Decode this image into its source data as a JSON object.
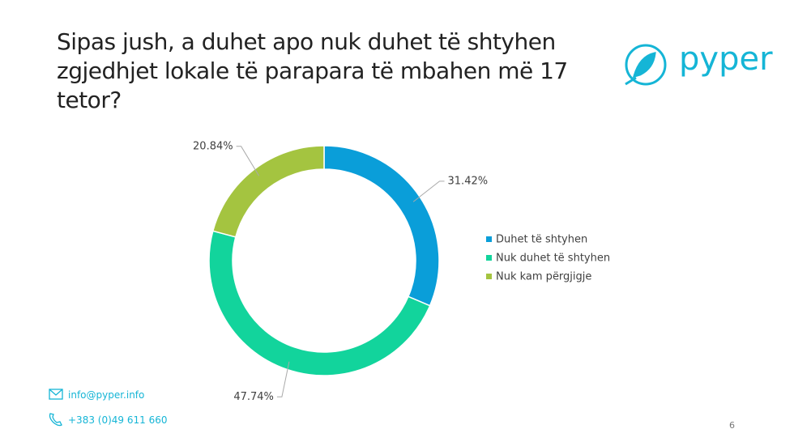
{
  "chart_data": {
    "type": "pie",
    "donut": true,
    "title": "Sipas jush, a duhet apo nuk duhet të shtyhen zgjedhjet lokale të parapara të mbahen më 17 tetor?",
    "categories": [
      "Duhet të shtyhen",
      "Nuk duhet të shtyhen",
      "Nuk kam përgjigje"
    ],
    "values": [
      31.42,
      47.74,
      20.84
    ],
    "value_labels": [
      "31.42%",
      "47.74%",
      "20.84%"
    ],
    "colors": [
      "#0a9ed9",
      "#12d49c",
      "#a4c440"
    ],
    "legend": "right"
  },
  "logo": {
    "text": "pyper"
  },
  "footer": {
    "email": "info@pyper.info",
    "phone": "+383 (0)49 611 660",
    "page": "6"
  }
}
